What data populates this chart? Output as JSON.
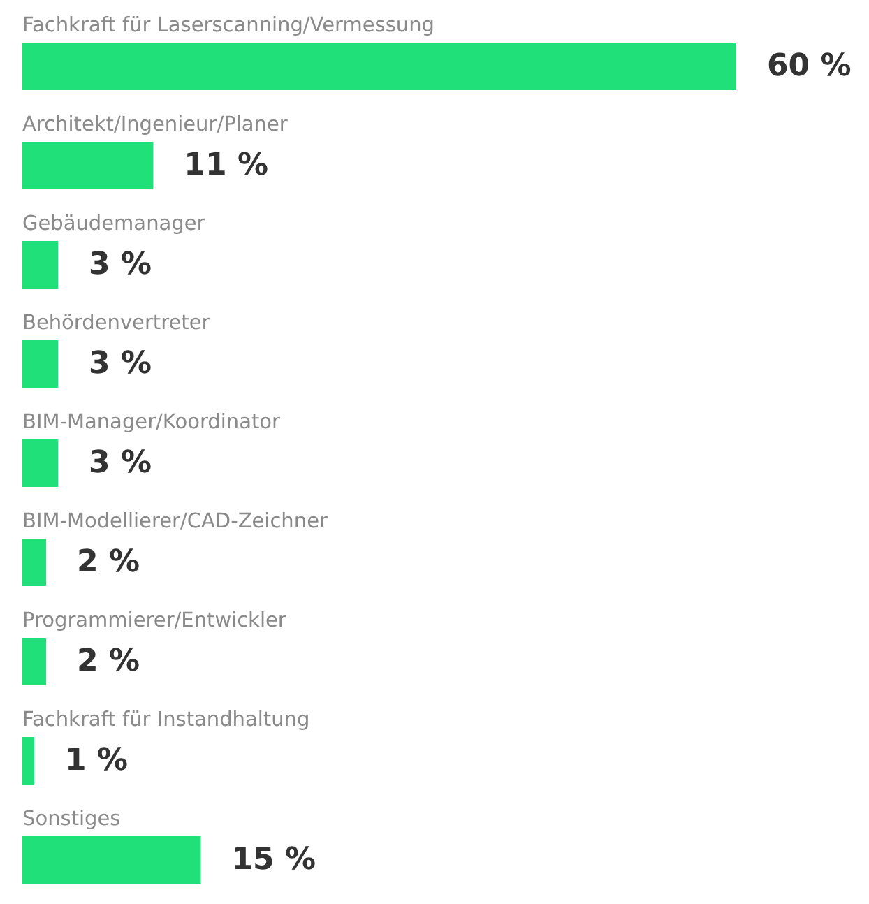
{
  "chart_data": {
    "type": "bar",
    "orientation": "horizontal",
    "color": "#20e07a",
    "categories": [
      "Fachkraft für Laserscanning/Vermessung",
      "Architekt/Ingenieur/Planer",
      "Gebäudemanager",
      "Behördenvertreter",
      "BIM-Manager/Koordinator",
      "BIM-Modellierer/CAD-Zeichner",
      "Programmierer/Entwickler",
      "Fachkraft für Instandhaltung",
      "Sonstiges"
    ],
    "values": [
      60,
      11,
      3,
      3,
      3,
      2,
      2,
      1,
      15
    ],
    "value_labels": [
      "60 %",
      "11 %",
      "3 %",
      "3 %",
      "3 %",
      "2 %",
      "2 %",
      "1 %",
      "15 %"
    ]
  }
}
